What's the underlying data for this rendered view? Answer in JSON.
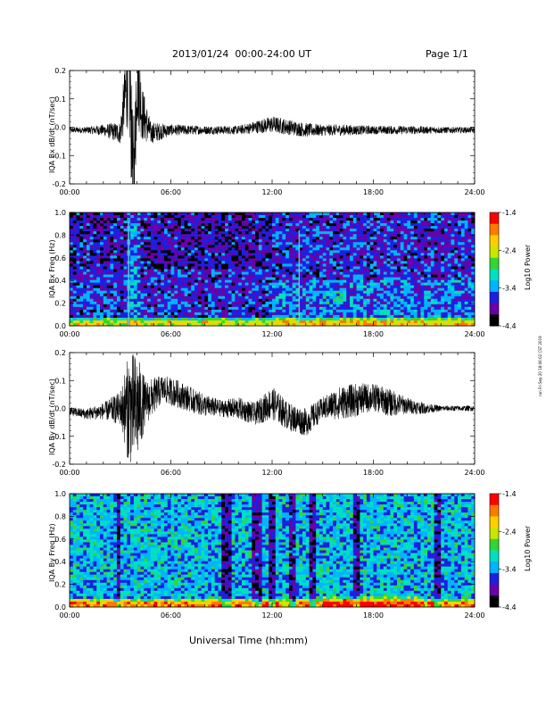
{
  "header": {
    "title": "2013/01/24  00:00-24:00 UT",
    "page": "Page 1/1"
  },
  "footer": {
    "xlabel": "Universal Time (hh:mm)"
  },
  "side_stamp": "run Fri Sep 20 18:06:02 CST 2019",
  "colorbar": {
    "label": "Log10 Power",
    "ticks": [
      "-1.4",
      "-2.4",
      "-3.4",
      "-4.4"
    ],
    "colors": [
      "#000000",
      "#6a00a8",
      "#1f1fe0",
      "#00b4ff",
      "#00e0c0",
      "#33d633",
      "#c8e600",
      "#ffd000",
      "#ff7a00",
      "#ff0000"
    ]
  },
  "chart_data": [
    {
      "type": "line",
      "ylabel": "IQA Bx dB/dt (nT/sec)",
      "x_ticks": [
        "00:00",
        "06:00",
        "12:00",
        "18:00",
        "24:00"
      ],
      "y_ticks": [
        "0.2",
        "0.1",
        "0.0",
        "-0.1",
        "-0.2"
      ],
      "ylim": [
        -0.2,
        0.2
      ],
      "x_range_hours": [
        0,
        24
      ],
      "series": [
        {
          "x": [
            0,
            1,
            2,
            3,
            3.5,
            3.8,
            4.0,
            4.3,
            4.8,
            6,
            8,
            10,
            12,
            14,
            15,
            16,
            18,
            20,
            22,
            24
          ],
          "y": [
            -0.01,
            -0.01,
            -0.01,
            -0.02,
            0.2,
            -0.2,
            0.2,
            0.05,
            -0.02,
            -0.01,
            -0.01,
            -0.01,
            0.01,
            -0.01,
            -0.01,
            -0.01,
            -0.01,
            -0.01,
            -0.01,
            -0.01
          ],
          "envelope": [
            0.01,
            0.012,
            0.02,
            0.04,
            0.2,
            0.2,
            0.2,
            0.1,
            0.04,
            0.02,
            0.015,
            0.015,
            0.03,
            0.025,
            0.02,
            0.02,
            0.015,
            0.015,
            0.012,
            0.01
          ]
        }
      ]
    },
    {
      "type": "heatmap",
      "ylabel": "IQA Bx Freq (Hz)",
      "x_ticks": [
        "00:00",
        "06:00",
        "12:00",
        "18:00",
        "24:00"
      ],
      "y_ticks": [
        "1.0",
        "0.8",
        "0.6",
        "0.4",
        "0.2",
        "0.0"
      ],
      "ylim": [
        0.0,
        1.0
      ],
      "zlim": [
        -4.4,
        -1.4
      ]
    },
    {
      "type": "line",
      "ylabel": "IQA By dB/dt (nT/sec)",
      "x_ticks": [
        "00:00",
        "06:00",
        "12:00",
        "18:00",
        "24:00"
      ],
      "y_ticks": [
        "0.2",
        "0.1",
        "0.0",
        "-0.1",
        "-0.2"
      ],
      "ylim": [
        -0.2,
        0.2
      ],
      "x_range_hours": [
        0,
        24
      ],
      "series": [
        {
          "x": [
            0,
            1,
            2,
            3,
            3.5,
            4.0,
            4.5,
            5.5,
            6.5,
            8,
            9,
            10,
            11,
            12,
            13,
            14,
            15,
            16,
            17,
            18,
            19,
            20,
            21,
            22,
            23,
            24
          ],
          "y": [
            -0.01,
            -0.02,
            -0.01,
            0.0,
            0.0,
            0.0,
            0.02,
            0.07,
            0.05,
            0.01,
            0.0,
            0.0,
            -0.02,
            0.02,
            -0.03,
            -0.05,
            0.0,
            0.02,
            0.03,
            0.04,
            0.02,
            0.01,
            0.0,
            0.0,
            0.0,
            0.0
          ],
          "envelope": [
            0.015,
            0.02,
            0.03,
            0.06,
            0.2,
            0.2,
            0.08,
            0.05,
            0.05,
            0.04,
            0.03,
            0.04,
            0.04,
            0.06,
            0.05,
            0.05,
            0.04,
            0.06,
            0.06,
            0.05,
            0.05,
            0.03,
            0.02,
            0.01,
            0.01,
            0.01
          ]
        }
      ]
    },
    {
      "type": "heatmap",
      "ylabel": "IQA By Freq (Hz)",
      "x_ticks": [
        "00:00",
        "06:00",
        "12:00",
        "18:00",
        "24:00"
      ],
      "y_ticks": [
        "1.0",
        "0.8",
        "0.6",
        "0.4",
        "0.2",
        "0.0"
      ],
      "ylim": [
        0.0,
        1.0
      ],
      "zlim": [
        -4.4,
        -1.4
      ]
    }
  ]
}
